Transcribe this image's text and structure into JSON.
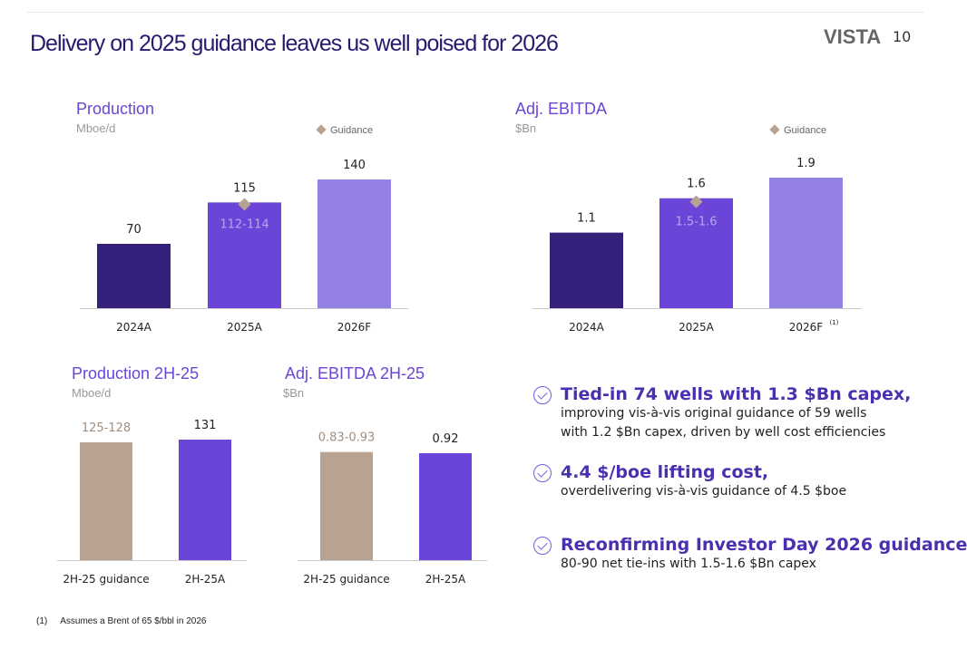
{
  "header": {
    "title": "Delivery on 2025 guidance leaves us well poised for 2026",
    "logo": "VISTA",
    "page_number": "10"
  },
  "colors": {
    "dark": "#34207a",
    "mid": "#6a45d8",
    "light": "#9580e4",
    "guidance": "#b8a392",
    "title": "#2a1a6e"
  },
  "chart_data": [
    {
      "type": "bar",
      "title": "Production",
      "unit": "Mboe/d",
      "legend": "Guidance",
      "categories": [
        "2024A",
        "2025A",
        "2026F"
      ],
      "values": [
        70,
        115,
        140
      ],
      "labels": [
        "70",
        "115",
        "140"
      ],
      "guidance": {
        "category": "2025A",
        "value": 113,
        "label": "112-114"
      },
      "ylim": [
        0,
        140
      ]
    },
    {
      "type": "bar",
      "title": "Adj. EBITDA",
      "unit": "$Bn",
      "legend": "Guidance",
      "categories": [
        "2024A",
        "2025A",
        "2026F"
      ],
      "category_footnote": {
        "2026F": "(1)"
      },
      "values": [
        1.1,
        1.6,
        1.9
      ],
      "labels": [
        "1.1",
        "1.6",
        "1.9"
      ],
      "guidance": {
        "category": "2025A",
        "value": 1.55,
        "label": "1.5-1.6"
      },
      "ylim": [
        0,
        1.9
      ]
    },
    {
      "type": "bar",
      "title": "Production 2H-25",
      "unit": "Mboe/d",
      "categories": [
        "2H-25 guidance",
        "2H-25A"
      ],
      "values": [
        128,
        131
      ],
      "labels": [
        "125-128",
        "131"
      ],
      "ylim": [
        0,
        131
      ]
    },
    {
      "type": "bar",
      "title": "Adj. EBITDA 2H-25",
      "unit": "$Bn",
      "categories": [
        "2H-25 guidance",
        "2H-25A"
      ],
      "values": [
        0.93,
        0.92
      ],
      "labels": [
        "0.83-0.93",
        "0.92"
      ],
      "ylim": [
        0,
        0.92
      ]
    }
  ],
  "bullets": [
    {
      "head": "Tied-in 74 wells with 1.3 $Bn capex,",
      "body": "improving vis-à-vis original guidance of 59 wells with 1.2 $Bn capex, driven by well cost efficiencies"
    },
    {
      "head": "4.4 $/boe lifting cost,",
      "body": "overdelivering vis-à-vis guidance of 4.5 $boe"
    },
    {
      "head": "Reconfirming Investor Day 2026 guidance",
      "body": "80-90 net tie-ins with 1.5-1.6 $Bn capex"
    }
  ],
  "footnote": {
    "marker": "(1)",
    "text": "Assumes a Brent of 65 $/bbl in 2026"
  }
}
